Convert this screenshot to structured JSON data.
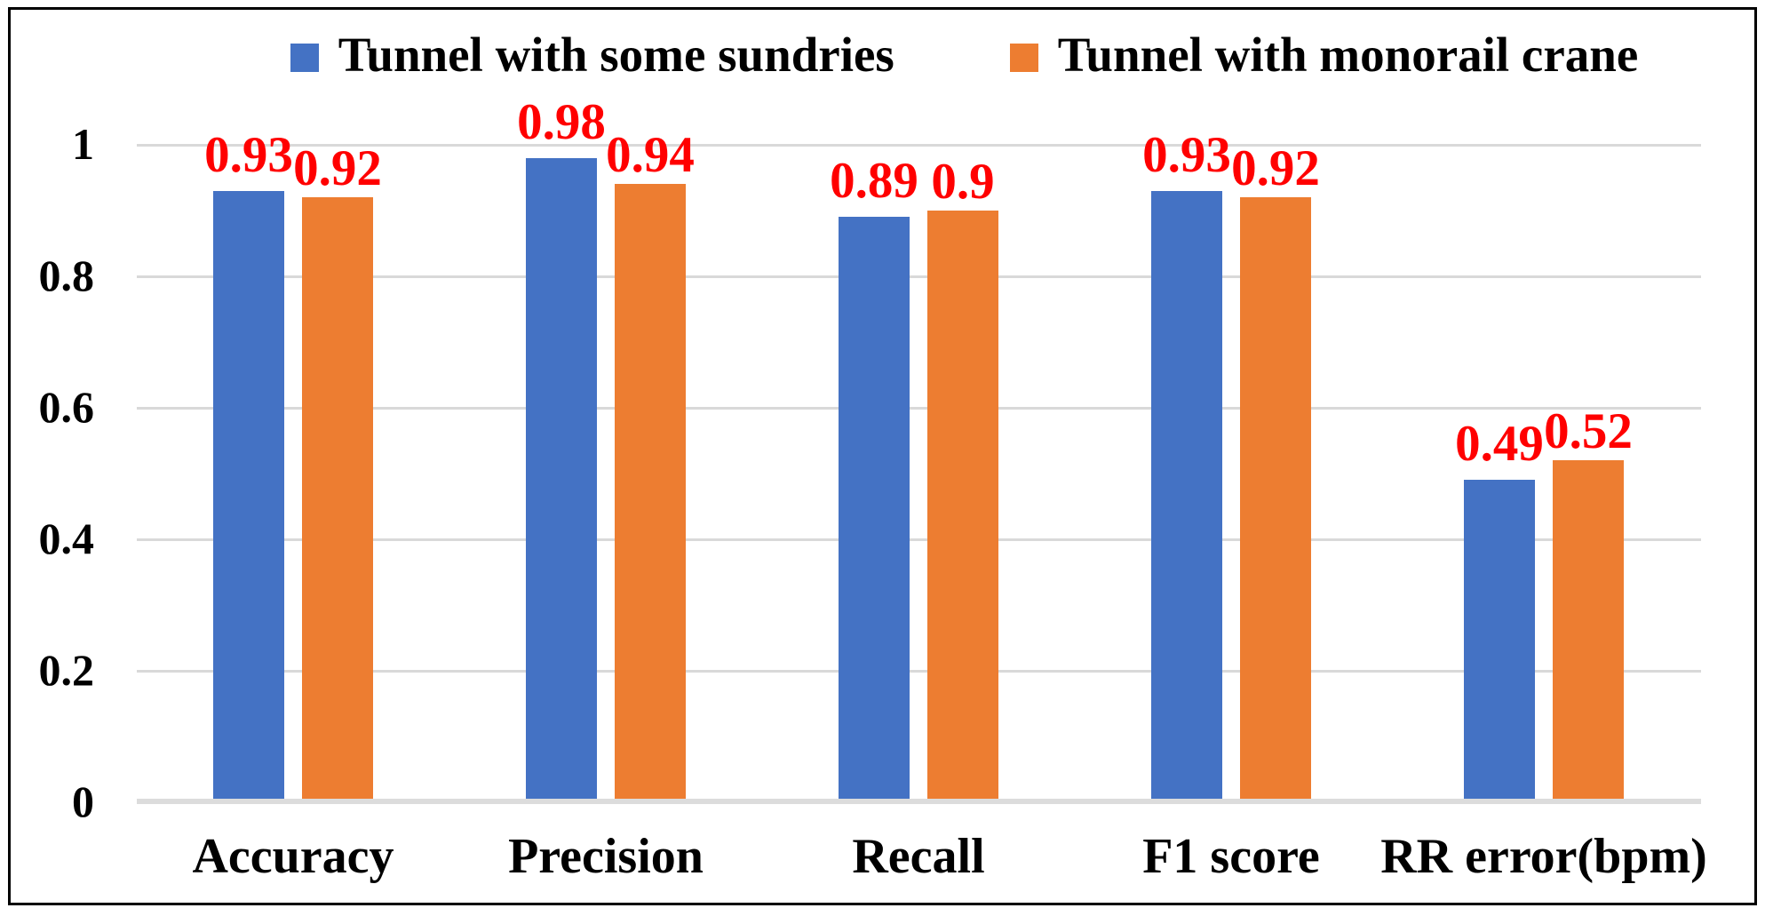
{
  "chart_data": {
    "type": "bar",
    "title": "",
    "categories": [
      "Accuracy",
      "Precision",
      "Recall",
      "F1 score",
      "RR error(bpm)"
    ],
    "series": [
      {
        "name": "Tunnel with some sundries",
        "color": "#4472C4",
        "values": [
          0.93,
          0.98,
          0.89,
          0.93,
          0.49
        ],
        "data_labels": [
          "0.93",
          "0.98",
          "0.89",
          "0.93",
          "0.49"
        ]
      },
      {
        "name": "Tunnel with monorail crane",
        "color": "#ED7D31",
        "values": [
          0.92,
          0.94,
          0.9,
          0.92,
          0.52
        ],
        "data_labels": [
          "0.92",
          "0.94",
          "0.9",
          "0.92",
          "0.52"
        ]
      }
    ],
    "y_axis": {
      "min": 0,
      "max": 1,
      "tick_values": [
        0,
        0.2,
        0.4,
        0.6,
        0.8,
        1
      ],
      "tick_labels": [
        "0",
        "0.2",
        "0.4",
        "0.6",
        "0.8",
        "1"
      ]
    },
    "legend_position": "top",
    "grid": true,
    "styles": {
      "data_label_color": "#FF0000",
      "gridline_color": "#D9D9D9",
      "baseline_color": "#DCDCDC",
      "axis_text_color": "#000000",
      "frame_border_color": "#000000"
    }
  }
}
